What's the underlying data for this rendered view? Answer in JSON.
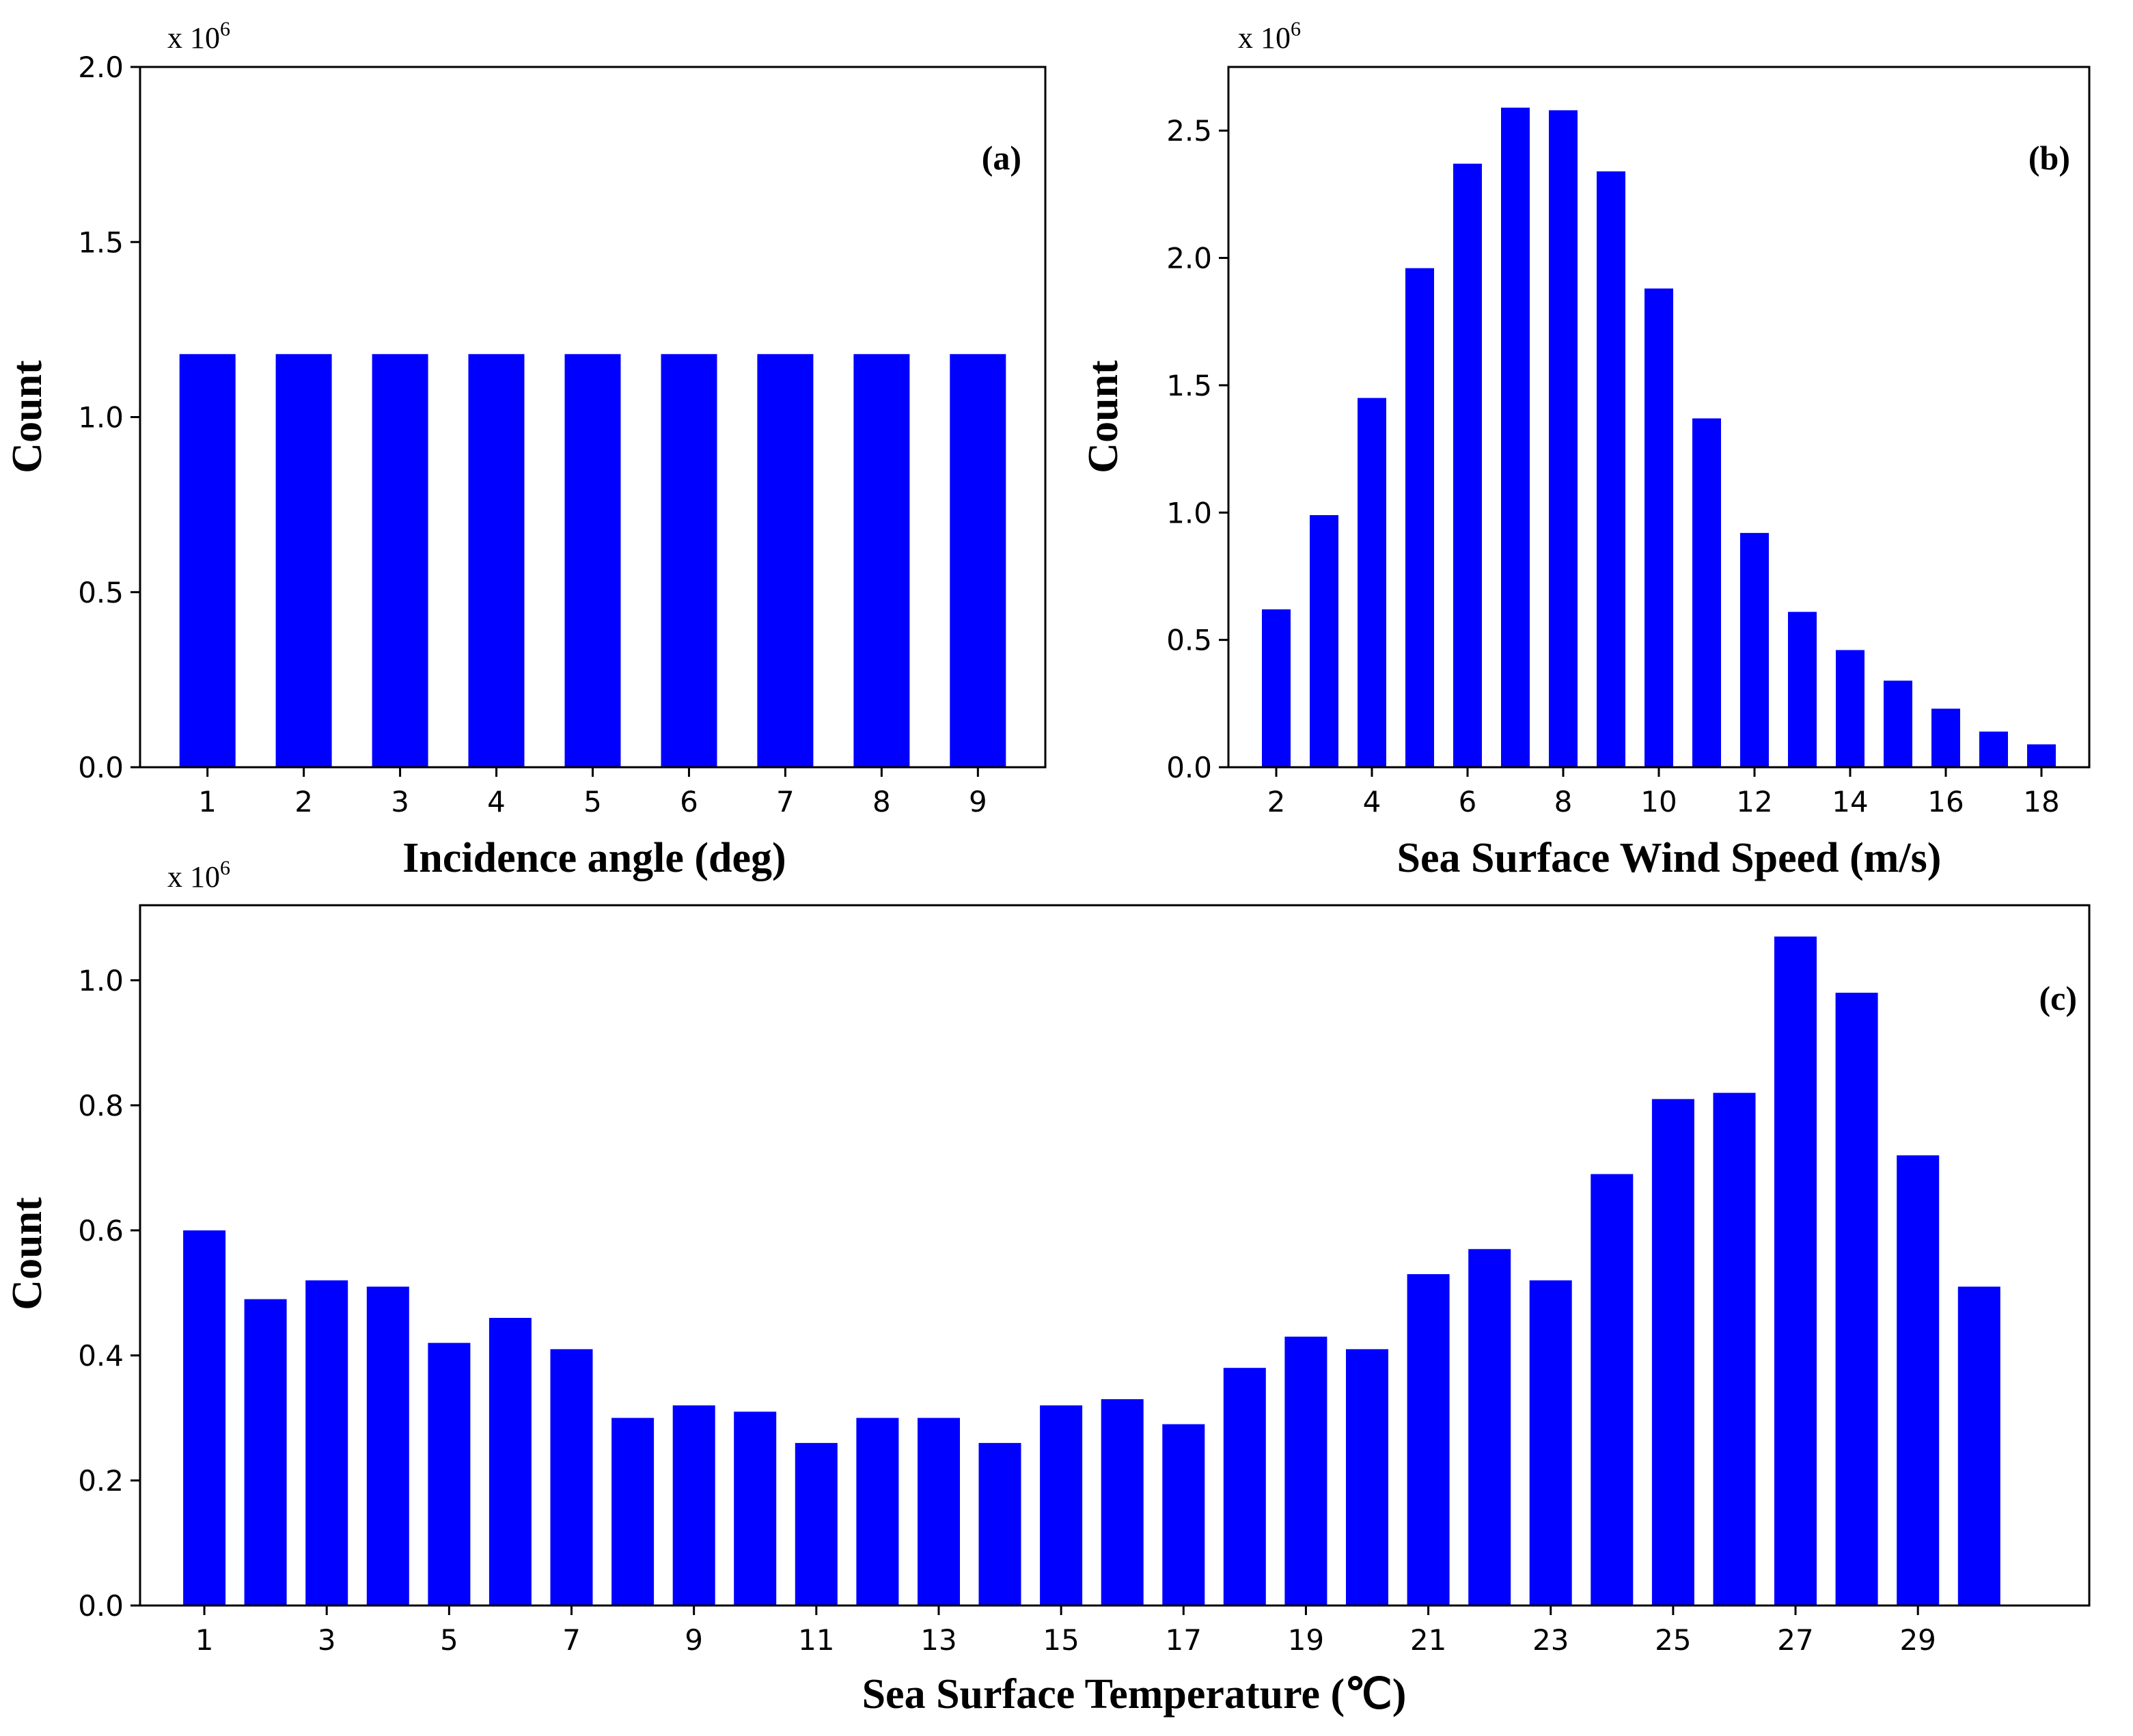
{
  "bar_color": "#0000ff",
  "chart_data": [
    {
      "id": "a",
      "type": "bar",
      "panel_label": "(a)",
      "multiplier_base": "x 10",
      "multiplier_exp": "6",
      "xlabel": "Incidence angle (deg)",
      "ylabel": "Count",
      "categories": [
        1,
        2,
        3,
        4,
        5,
        6,
        7,
        8,
        9
      ],
      "values": [
        1.18,
        1.18,
        1.18,
        1.18,
        1.18,
        1.18,
        1.18,
        1.18,
        1.18
      ],
      "xlim": [
        0.3,
        9.7
      ],
      "ylim": [
        0,
        2.0
      ],
      "xticks": [
        1,
        2,
        3,
        4,
        5,
        6,
        7,
        8,
        9
      ],
      "yticks": [
        "0.0",
        "0.5",
        "1.0",
        "1.5",
        "2.0"
      ],
      "grid": false
    },
    {
      "id": "b",
      "type": "bar",
      "panel_label": "(b)",
      "multiplier_base": "x 10",
      "multiplier_exp": "6",
      "xlabel": "Sea Surface Wind Speed (m/s)",
      "ylabel": "Count",
      "categories": [
        2,
        3,
        4,
        5,
        6,
        7,
        8,
        9,
        10,
        11,
        12,
        13,
        14,
        15,
        16,
        17,
        18
      ],
      "values": [
        0.62,
        0.99,
        1.45,
        1.96,
        2.37,
        2.59,
        2.58,
        2.34,
        1.88,
        1.37,
        0.92,
        0.61,
        0.46,
        0.34,
        0.23,
        0.14,
        0.09
      ],
      "xlim": [
        1.0,
        19.0
      ],
      "ylim": [
        0,
        2.75
      ],
      "xticks": [
        2,
        4,
        6,
        8,
        10,
        12,
        14,
        16,
        18
      ],
      "yticks": [
        "0.0",
        "0.5",
        "1.0",
        "1.5",
        "2.0",
        "2.5"
      ],
      "grid": false
    },
    {
      "id": "c",
      "type": "bar",
      "panel_label": "(c)",
      "multiplier_base": "x 10",
      "multiplier_exp": "6",
      "xlabel": "Sea Surface Temperature (℃)",
      "ylabel": "Count",
      "categories": [
        1,
        2,
        3,
        4,
        5,
        6,
        7,
        8,
        9,
        10,
        11,
        12,
        13,
        14,
        15,
        16,
        17,
        18,
        19,
        20,
        21,
        22,
        23,
        24,
        25,
        26,
        27,
        28,
        29,
        30
      ],
      "values": [
        0.6,
        0.49,
        0.52,
        0.51,
        0.42,
        0.46,
        0.41,
        0.3,
        0.32,
        0.31,
        0.26,
        0.3,
        0.3,
        0.26,
        0.32,
        0.33,
        0.29,
        0.38,
        0.43,
        0.41,
        0.53,
        0.57,
        0.52,
        0.69,
        0.81,
        0.82,
        1.07,
        0.98,
        0.72,
        0.51
      ],
      "xlim": [
        -0.05,
        31.8
      ],
      "ylim": [
        0,
        1.12
      ],
      "xticks": [
        1,
        3,
        5,
        7,
        9,
        11,
        13,
        15,
        17,
        19,
        21,
        23,
        25,
        27,
        29
      ],
      "yticks": [
        "0.0",
        "0.2",
        "0.4",
        "0.6",
        "0.8",
        "1.0"
      ],
      "grid": false
    }
  ]
}
